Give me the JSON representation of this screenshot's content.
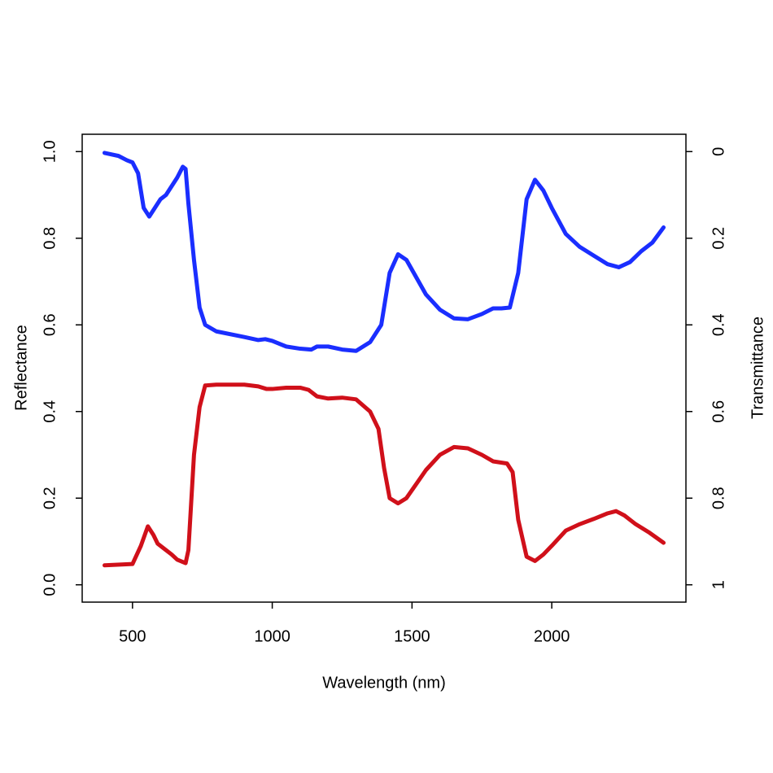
{
  "chart_data": {
    "type": "line",
    "xlabel": "Wavelength (nm)",
    "ylabel": "Reflectance",
    "y2label": "Transmittance",
    "xlim": [
      320,
      2480
    ],
    "xticks": [
      500,
      1000,
      1500,
      2000
    ],
    "ylim": [
      -0.04,
      1.04
    ],
    "yticks": [
      {
        "value": 0,
        "label": "0.0"
      },
      0.2,
      0.4,
      0.6,
      0.8,
      {
        "value": 1,
        "label": "1.0"
      }
    ],
    "y2lim": [
      1.04,
      -0.04
    ],
    "y2ticks": [
      0,
      0.2,
      0.4,
      0.6,
      0.8,
      1
    ],
    "grid": false,
    "series": [
      {
        "color": "#1a2eff",
        "x": [
          400,
          450,
          480,
          500,
          520,
          540,
          560,
          580,
          600,
          620,
          640,
          660,
          680,
          690,
          700,
          720,
          740,
          760,
          800,
          900,
          950,
          975,
          1000,
          1050,
          1100,
          1140,
          1160,
          1200,
          1250,
          1300,
          1350,
          1390,
          1420,
          1450,
          1480,
          1550,
          1600,
          1650,
          1700,
          1750,
          1790,
          1820,
          1850,
          1880,
          1910,
          1940,
          1970,
          2000,
          2050,
          2100,
          2150,
          2200,
          2240,
          2280,
          2320,
          2360,
          2400
        ],
        "values": [
          0.997,
          0.99,
          0.98,
          0.975,
          0.95,
          0.87,
          0.85,
          0.87,
          0.89,
          0.9,
          0.92,
          0.94,
          0.965,
          0.96,
          0.88,
          0.75,
          0.64,
          0.6,
          0.585,
          0.572,
          0.565,
          0.567,
          0.563,
          0.55,
          0.545,
          0.543,
          0.55,
          0.55,
          0.543,
          0.54,
          0.56,
          0.6,
          0.72,
          0.763,
          0.75,
          0.67,
          0.635,
          0.615,
          0.613,
          0.625,
          0.638,
          0.638,
          0.64,
          0.72,
          0.89,
          0.935,
          0.91,
          0.87,
          0.81,
          0.78,
          0.76,
          0.74,
          0.733,
          0.745,
          0.77,
          0.79,
          0.825
        ]
      },
      {
        "color": "#d0101a",
        "axis": "y2",
        "x": [
          400,
          500,
          530,
          555,
          575,
          590,
          620,
          640,
          660,
          690,
          700,
          720,
          740,
          760,
          800,
          900,
          950,
          980,
          1000,
          1050,
          1100,
          1130,
          1160,
          1200,
          1250,
          1300,
          1350,
          1380,
          1400,
          1420,
          1450,
          1480,
          1550,
          1600,
          1650,
          1700,
          1750,
          1790,
          1840,
          1860,
          1880,
          1910,
          1940,
          1970,
          2000,
          2050,
          2100,
          2150,
          2200,
          2230,
          2260,
          2300,
          2350,
          2400
        ],
        "values": [
          0.955,
          0.952,
          0.91,
          0.865,
          0.885,
          0.905,
          0.92,
          0.93,
          0.942,
          0.95,
          0.92,
          0.7,
          0.59,
          0.54,
          0.538,
          0.538,
          0.542,
          0.548,
          0.548,
          0.545,
          0.545,
          0.55,
          0.565,
          0.57,
          0.568,
          0.572,
          0.6,
          0.64,
          0.73,
          0.8,
          0.812,
          0.8,
          0.735,
          0.7,
          0.682,
          0.685,
          0.7,
          0.715,
          0.72,
          0.74,
          0.85,
          0.935,
          0.945,
          0.93,
          0.91,
          0.875,
          0.86,
          0.848,
          0.835,
          0.83,
          0.84,
          0.86,
          0.88,
          0.903
        ]
      }
    ]
  }
}
